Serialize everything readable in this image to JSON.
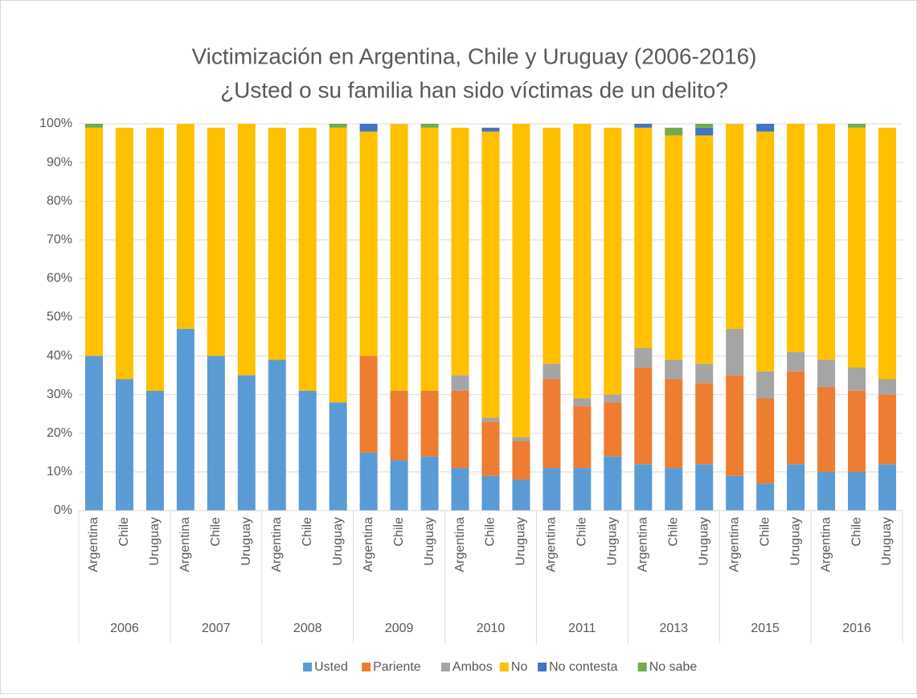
{
  "chart_data": {
    "type": "stacked_bar",
    "title": "Victimización en Argentina, Chile y Uruguay (2006-2016)",
    "subtitle": "¿Usted o su familia han sido víctimas de un delito?",
    "groups": [
      {
        "name": "2006",
        "categories": [
          "Argentina",
          "Chile",
          "Uruguay"
        ]
      },
      {
        "name": "2007",
        "categories": [
          "Argentina",
          "Chile",
          "Uruguay"
        ]
      },
      {
        "name": "2008",
        "categories": [
          "Argentina",
          "Chile",
          "Uruguay"
        ]
      },
      {
        "name": "2009",
        "categories": [
          "Argentina",
          "Chile",
          "Uruguay"
        ]
      },
      {
        "name": "2010",
        "categories": [
          "Argentina",
          "Chile",
          "Uruguay"
        ]
      },
      {
        "name": "2011",
        "categories": [
          "Argentina",
          "Chile",
          "Uruguay"
        ]
      },
      {
        "name": "2013",
        "categories": [
          "Argentina",
          "Chile",
          "Uruguay"
        ]
      },
      {
        "name": "2015",
        "categories": [
          "Argentina",
          "Chile",
          "Uruguay"
        ]
      },
      {
        "name": "2016",
        "categories": [
          "Argentina",
          "Chile",
          "Uruguay"
        ]
      }
    ],
    "series": [
      {
        "name": "Usted",
        "color": "#5b9bd5",
        "values": [
          40,
          34,
          31,
          47,
          40,
          35,
          39,
          31,
          28,
          15,
          13,
          14,
          11,
          9,
          8,
          11,
          11,
          14,
          12,
          11,
          12,
          9,
          7,
          12,
          10,
          10,
          12
        ]
      },
      {
        "name": "Pariente",
        "color": "#ed7d31",
        "values": [
          0,
          0,
          0,
          0,
          0,
          0,
          0,
          0,
          0,
          25,
          18,
          17,
          20,
          14,
          10,
          23,
          16,
          14,
          25,
          23,
          21,
          26,
          22,
          24,
          22,
          21,
          18
        ]
      },
      {
        "name": "Ambos",
        "color": "#a5a5a5",
        "values": [
          0,
          0,
          0,
          0,
          0,
          0,
          0,
          0,
          0,
          0,
          0,
          0,
          4,
          1,
          1,
          4,
          2,
          2,
          5,
          5,
          5,
          12,
          7,
          5,
          7,
          6,
          4
        ]
      },
      {
        "name": "No",
        "color": "#ffc000",
        "values": [
          59,
          65,
          68,
          53,
          59,
          65,
          60,
          68,
          71,
          58,
          69,
          68,
          64,
          74,
          81,
          61,
          71,
          69,
          57,
          58,
          59,
          53,
          62,
          59,
          61,
          62,
          65
        ]
      },
      {
        "name": "No contesta",
        "color": "#4472c4",
        "values": [
          0,
          0,
          0,
          0,
          0,
          0,
          0,
          0,
          0,
          2,
          0,
          0,
          0,
          1,
          0,
          0,
          0,
          0,
          1,
          0,
          2,
          0,
          2,
          0,
          0,
          0,
          0
        ]
      },
      {
        "name": "No sabe",
        "color": "#70ad47",
        "values": [
          1,
          0,
          0,
          0,
          0,
          0,
          0,
          0,
          1,
          0,
          0,
          1,
          0,
          0,
          0,
          0,
          0,
          0,
          0,
          2,
          1,
          0,
          0,
          0,
          0,
          1,
          0
        ]
      }
    ],
    "ylim": [
      0,
      100
    ],
    "yticks": [
      {
        "value": 0,
        "label": "0%"
      },
      {
        "value": 10,
        "label": "10%"
      },
      {
        "value": 20,
        "label": "20%"
      },
      {
        "value": 30,
        "label": "30%"
      },
      {
        "value": 40,
        "label": "40%"
      },
      {
        "value": 50,
        "label": "50%"
      },
      {
        "value": 60,
        "label": "60%"
      },
      {
        "value": 70,
        "label": "70%"
      },
      {
        "value": 80,
        "label": "80%"
      },
      {
        "value": 90,
        "label": "90%"
      },
      {
        "value": 100,
        "label": "100%"
      }
    ],
    "grid": true,
    "legend": "bottom"
  }
}
